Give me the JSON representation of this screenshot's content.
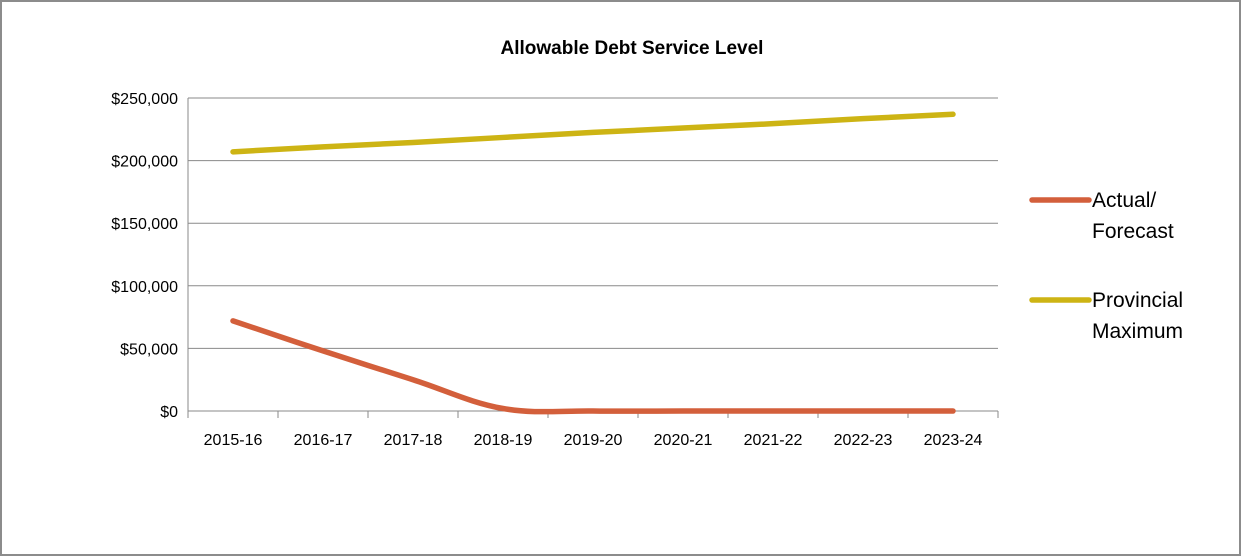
{
  "chart_data": {
    "type": "line",
    "title": "Allowable Debt Service Level",
    "xlabel": "",
    "ylabel": "",
    "categories": [
      "2015-16",
      "2016-17",
      "2017-18",
      "2018-19",
      "2019-20",
      "2020-21",
      "2021-22",
      "2022-23",
      "2023-24"
    ],
    "ylim": [
      0,
      250000
    ],
    "yticks": [
      0,
      50000,
      100000,
      150000,
      200000,
      250000
    ],
    "ytick_labels": [
      "$0",
      "$50,000",
      "$100,000",
      "$150,000",
      "$200,000",
      "$250,000"
    ],
    "grid": true,
    "legend_position": "right",
    "series": [
      {
        "name": "Actual/ Forecast",
        "legend_lines": [
          "Actual/",
          "Forecast"
        ],
        "color": "#d35f3b",
        "smooth": true,
        "values": [
          72000,
          48000,
          25000,
          2000,
          0,
          0,
          0,
          0,
          0
        ]
      },
      {
        "name": "Provincial Maximum",
        "legend_lines": [
          "Provincial",
          "Maximum"
        ],
        "color": "#cdb414",
        "smooth": false,
        "values": [
          207000,
          211000,
          214500,
          218500,
          222500,
          226000,
          229500,
          233500,
          237000
        ]
      }
    ]
  }
}
